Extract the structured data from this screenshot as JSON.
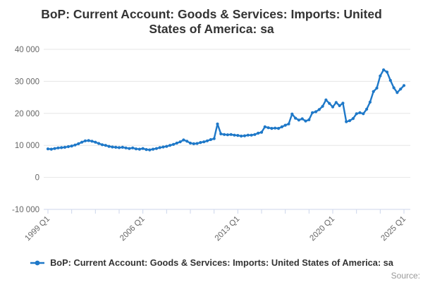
{
  "title": "BoP: Current Account: Goods & Services: Imports: United States of America: sa",
  "legend": {
    "label": "BoP: Current Account: Goods & Services: Imports: United States of America: sa"
  },
  "source_label": "Source:",
  "colors": {
    "line": "#1e78c8",
    "grid": "#e6e6e6",
    "axis": "#ccd6eb",
    "tick_text": "#666666",
    "title_text": "#333333",
    "source_text": "#999999"
  },
  "chart_data": {
    "type": "line",
    "title": "BoP: Current Account: Goods & Services: Imports: United States of America: sa",
    "frequency": "quarterly",
    "x_start": "1999 Q1",
    "x_end": "2025 Q2",
    "ylim": [
      -10000,
      40000
    ],
    "y_ticks": [
      -10000,
      0,
      10000,
      20000,
      30000,
      40000
    ],
    "y_tick_labels": [
      "-10 000",
      "0",
      "10 000",
      "20 000",
      "30 000",
      "40 000"
    ],
    "x_minor_tick_quarter_step": 7,
    "x_labels": [
      {
        "q": 0,
        "label": "1999 Q1"
      },
      {
        "q": 28,
        "label": "2006 Q1"
      },
      {
        "q": 56,
        "label": "2013 Q1"
      },
      {
        "q": 84,
        "label": "2020 Q1"
      },
      {
        "q": 105,
        "label": "2025 Q1"
      }
    ],
    "grid": true,
    "legend_position": "bottom",
    "quarters": [
      "1999 Q1",
      "1999 Q2",
      "1999 Q3",
      "1999 Q4",
      "2000 Q1",
      "2000 Q2",
      "2000 Q3",
      "2000 Q4",
      "2001 Q1",
      "2001 Q2",
      "2001 Q3",
      "2001 Q4",
      "2002 Q1",
      "2002 Q2",
      "2002 Q3",
      "2002 Q4",
      "2003 Q1",
      "2003 Q2",
      "2003 Q3",
      "2003 Q4",
      "2004 Q1",
      "2004 Q2",
      "2004 Q3",
      "2004 Q4",
      "2005 Q1",
      "2005 Q2",
      "2005 Q3",
      "2005 Q4",
      "2006 Q1",
      "2006 Q2",
      "2006 Q3",
      "2006 Q4",
      "2007 Q1",
      "2007 Q2",
      "2007 Q3",
      "2007 Q4",
      "2008 Q1",
      "2008 Q2",
      "2008 Q3",
      "2008 Q4",
      "2009 Q1",
      "2009 Q2",
      "2009 Q3",
      "2009 Q4",
      "2010 Q1",
      "2010 Q2",
      "2010 Q3",
      "2010 Q4",
      "2011 Q1",
      "2011 Q2",
      "2011 Q3",
      "2011 Q4",
      "2012 Q1",
      "2012 Q2",
      "2012 Q3",
      "2012 Q4",
      "2013 Q1",
      "2013 Q2",
      "2013 Q3",
      "2013 Q4",
      "2014 Q1",
      "2014 Q2",
      "2014 Q3",
      "2014 Q4",
      "2015 Q1",
      "2015 Q2",
      "2015 Q3",
      "2015 Q4",
      "2016 Q1",
      "2016 Q2",
      "2016 Q3",
      "2016 Q4",
      "2017 Q1",
      "2017 Q2",
      "2017 Q3",
      "2017 Q4",
      "2018 Q1",
      "2018 Q2",
      "2018 Q3",
      "2018 Q4",
      "2019 Q1",
      "2019 Q2",
      "2019 Q3",
      "2019 Q4",
      "2020 Q1",
      "2020 Q2",
      "2020 Q3",
      "2020 Q4",
      "2021 Q1",
      "2021 Q2",
      "2021 Q3",
      "2021 Q4",
      "2022 Q1",
      "2022 Q2",
      "2022 Q3",
      "2022 Q4",
      "2023 Q1",
      "2023 Q2",
      "2023 Q3",
      "2023 Q4",
      "2024 Q1",
      "2024 Q2",
      "2024 Q3",
      "2024 Q4",
      "2025 Q1",
      "2025 Q2"
    ],
    "values": [
      8900,
      8800,
      9000,
      9200,
      9300,
      9400,
      9600,
      9800,
      10100,
      10500,
      11000,
      11400,
      11500,
      11300,
      11000,
      10600,
      10200,
      10000,
      9700,
      9500,
      9400,
      9300,
      9400,
      9200,
      9000,
      9200,
      8900,
      8800,
      9000,
      8700,
      8600,
      8800,
      9000,
      9300,
      9500,
      9700,
      10000,
      10300,
      10700,
      11100,
      11700,
      11300,
      10700,
      10500,
      10600,
      10900,
      11100,
      11400,
      11800,
      12100,
      16700,
      13600,
      13400,
      13300,
      13400,
      13200,
      13100,
      12900,
      13000,
      13200,
      13200,
      13400,
      13800,
      14100,
      15800,
      15500,
      15300,
      15400,
      15300,
      15800,
      16300,
      16700,
      19800,
      18500,
      17900,
      18300,
      17600,
      18000,
      20200,
      20500,
      21200,
      22200,
      24200,
      23100,
      22000,
      23400,
      22400,
      23200,
      17400,
      17700,
      18400,
      19900,
      20200,
      19900,
      21300,
      23500,
      26800,
      27900,
      31700,
      33600,
      32900,
      30300,
      28000,
      26500,
      27600,
      28700
    ]
  }
}
